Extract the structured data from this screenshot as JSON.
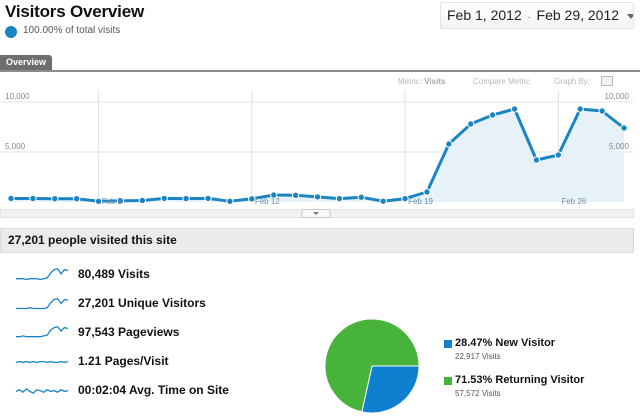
{
  "header": {
    "title": "Visitors Overview",
    "percent_total": "100.00% of total visits",
    "date_range": {
      "start": "Feb 1, 2012",
      "separator": "-",
      "end": "Feb 29, 2012"
    }
  },
  "tabs": [
    {
      "label": "Overview",
      "active": true
    }
  ],
  "chart_controls": {
    "metric_prefix": "Metric:",
    "metric_value": "Visits",
    "compare_metric": "Compare Metric",
    "graph_by": "Graph By:"
  },
  "chart_data": {
    "type": "area",
    "x": [
      "Feb 1",
      "Feb 2",
      "Feb 3",
      "Feb 4",
      "Feb 5",
      "Feb 6",
      "Feb 7",
      "Feb 8",
      "Feb 9",
      "Feb 10",
      "Feb 11",
      "Feb 12",
      "Feb 13",
      "Feb 14",
      "Feb 15",
      "Feb 16",
      "Feb 17",
      "Feb 18",
      "Feb 19",
      "Feb 20",
      "Feb 21",
      "Feb 22",
      "Feb 23",
      "Feb 24",
      "Feb 25",
      "Feb 26",
      "Feb 27",
      "Feb 28",
      "Feb 29"
    ],
    "series": [
      {
        "values": [
          350,
          350,
          330,
          330,
          70,
          120,
          150,
          360,
          340,
          360,
          70,
          320,
          700,
          670,
          510,
          340,
          480,
          80,
          340,
          1000,
          5800,
          7800,
          8700,
          9300,
          4200,
          4700,
          9300,
          9100,
          7400
        ]
      }
    ],
    "ylim": [
      0,
      10000
    ],
    "y_tick_labels": [
      "10,000",
      "5,000"
    ],
    "y_ticks": [
      10000,
      5000
    ],
    "x_tick_labels": [
      {
        "label": "Feb 5",
        "index": 4
      },
      {
        "label": "Feb 12",
        "index": 11
      },
      {
        "label": "Feb 19",
        "index": 18
      },
      {
        "label": "Feb 26",
        "index": 25
      }
    ],
    "grid": true,
    "colors": {
      "line": "#1b85c3",
      "fill": "#e6f2f8",
      "grid": "#e3e3e3",
      "vgrid": "#d6e3ee"
    }
  },
  "summary": {
    "text": "27,201 people visited this site"
  },
  "metrics": [
    {
      "value": "80,489",
      "label": "Visits",
      "spark": [
        4,
        4,
        4,
        3,
        4,
        4,
        4,
        3,
        4,
        5,
        11,
        15,
        16,
        10,
        15,
        14
      ]
    },
    {
      "value": "27,201",
      "label": "Unique Visitors",
      "spark": [
        3,
        3,
        3,
        3,
        4,
        3,
        3,
        3,
        3,
        4,
        10,
        14,
        15,
        9,
        14,
        13
      ]
    },
    {
      "value": "97,543",
      "label": "Pageviews",
      "spark": [
        4,
        4,
        5,
        4,
        4,
        4,
        4,
        4,
        5,
        6,
        12,
        15,
        16,
        11,
        15,
        14
      ]
    },
    {
      "value": "1.21",
      "label": "Pages/Visit",
      "spark": [
        8,
        9,
        8,
        9,
        8,
        9,
        8,
        9,
        9,
        8,
        9,
        8,
        8,
        9,
        8,
        9
      ]
    },
    {
      "value": "00:02:04",
      "label": "Avg. Time on Site",
      "spark": [
        8,
        10,
        7,
        11,
        8,
        6,
        10,
        9,
        7,
        10,
        8,
        9,
        7,
        10,
        8,
        9
      ]
    }
  ],
  "visitor_types": [
    {
      "name": "New Visitor",
      "percent": "28.47%",
      "count": "22,917 Visits",
      "share": 0.2847,
      "color": "#0f7fcf"
    },
    {
      "name": "Returning Visitor",
      "percent": "71.53%",
      "count": "57,572 Visits",
      "share": 0.7153,
      "color": "#48b33a"
    }
  ]
}
